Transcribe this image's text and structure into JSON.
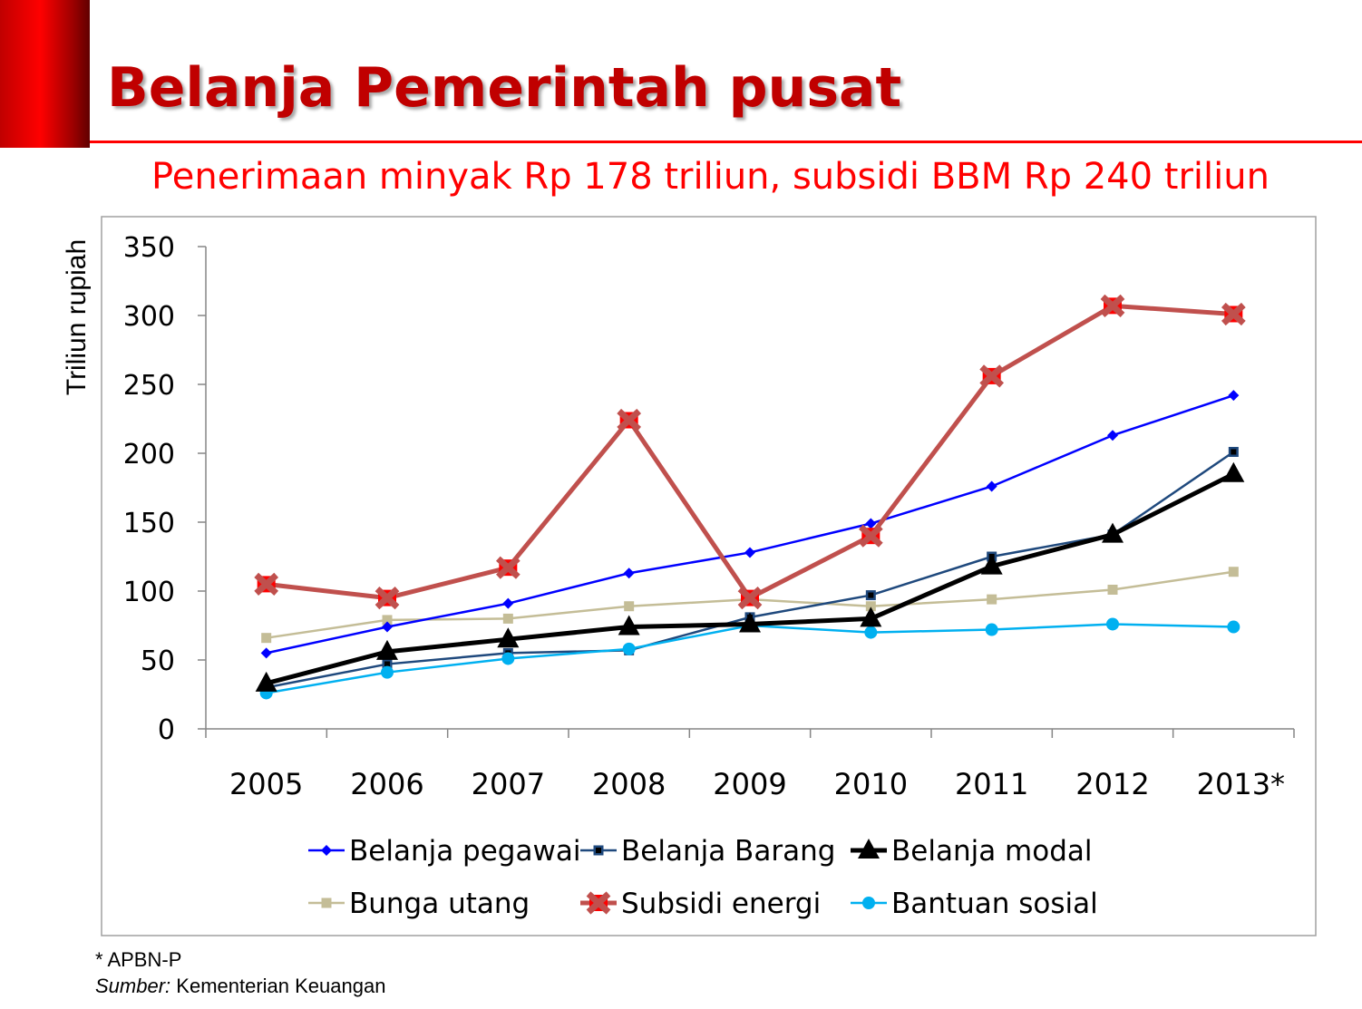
{
  "header": {
    "title": "Belanja Pemerintah pusat",
    "subtitle": "Penerimaan minyak Rp 178 triliun, subsidi BBM Rp 240 triliun"
  },
  "footnote": {
    "note": "* APBN-P",
    "source_label": "Sumber:",
    "source": "Kementerian Keuangan"
  },
  "chart_data": {
    "type": "line",
    "title": "",
    "xlabel": "",
    "ylabel": "Triliun rupiah",
    "ylim": [
      0,
      350
    ],
    "yticks": [
      "0",
      "50",
      "100",
      "150",
      "200",
      "250",
      "300",
      "350"
    ],
    "categories": [
      "2005",
      "2006",
      "2007",
      "2008",
      "2009",
      "2010",
      "2011",
      "2012",
      "2013*"
    ],
    "grid": false,
    "legend_position": "bottom",
    "series": [
      {
        "name": "Belanja pegawai",
        "color": "#0000ff",
        "marker": "diamond",
        "width": 2.5,
        "values": [
          55,
          74,
          91,
          113,
          128,
          149,
          176,
          213,
          242
        ]
      },
      {
        "name": "Belanja Barang",
        "color": "#1f497d",
        "marker": "square",
        "width": 2.5,
        "values": [
          30,
          47,
          55,
          57,
          81,
          97,
          125,
          141,
          201
        ]
      },
      {
        "name": "Belanja modal",
        "color": "#000000",
        "marker": "triangle",
        "width": 5,
        "values": [
          33,
          56,
          65,
          74,
          76,
          80,
          118,
          141,
          185
        ]
      },
      {
        "name": "Bunga utang",
        "color": "#c4bd97",
        "marker": "square",
        "width": 2.5,
        "values": [
          66,
          79,
          80,
          89,
          94,
          89,
          94,
          101,
          114
        ]
      },
      {
        "name": "Subsidi energi",
        "color": "#c0504d",
        "marker": "x-square",
        "width": 5,
        "values": [
          105,
          95,
          117,
          224,
          95,
          140,
          256,
          307,
          301
        ]
      },
      {
        "name": "Bantuan sosial",
        "color": "#00b0f0",
        "marker": "circle",
        "width": 2.5,
        "values": [
          26,
          41,
          51,
          58,
          75,
          70,
          72,
          76,
          74
        ]
      }
    ]
  }
}
